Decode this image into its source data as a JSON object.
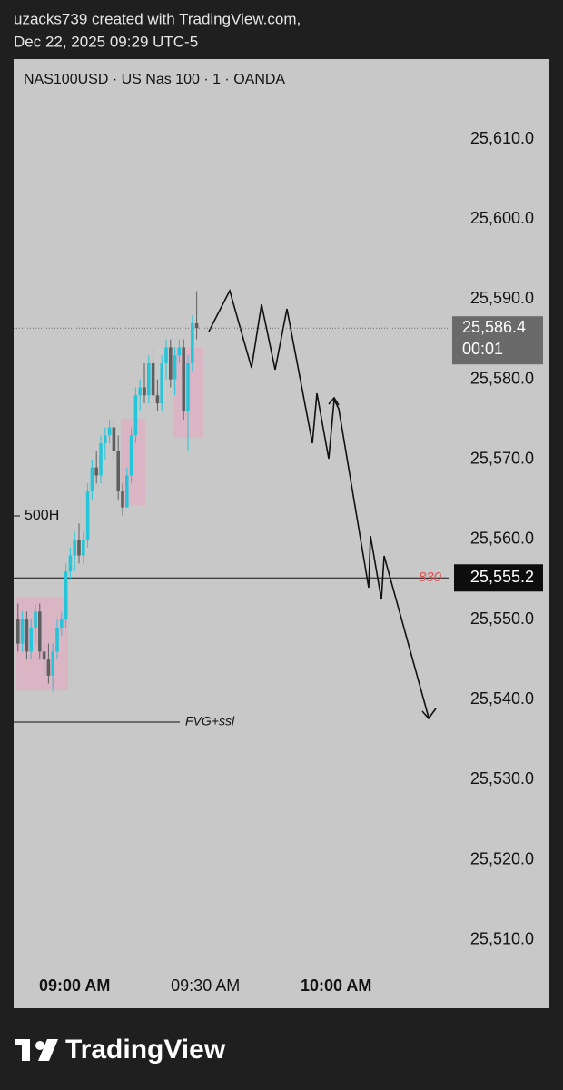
{
  "header": {
    "author_line": "uzacks739 created with TradingView.com,",
    "date_line": "Dec 22, 2025 09:29 UTC-5"
  },
  "chart_data": {
    "type": "candlestick",
    "title": "NAS100USD · US Nas 100 · 1 · OANDA",
    "x": [
      "08:47 AM",
      "08:48 AM",
      "08:49 AM",
      "08:50 AM",
      "08:51 AM",
      "08:52 AM",
      "08:53 AM",
      "08:54 AM",
      "08:55 AM",
      "08:56 AM",
      "08:57 AM",
      "08:58 AM",
      "08:59 AM",
      "09:00 AM",
      "09:01 AM",
      "09:02 AM",
      "09:03 AM",
      "09:04 AM",
      "09:05 AM",
      "09:06 AM",
      "09:07 AM",
      "09:08 AM",
      "09:09 AM",
      "09:10 AM",
      "09:11 AM",
      "09:12 AM",
      "09:13 AM",
      "09:14 AM",
      "09:15 AM",
      "09:16 AM",
      "09:17 AM",
      "09:18 AM",
      "09:19 AM",
      "09:20 AM",
      "09:21 AM",
      "09:22 AM",
      "09:23 AM",
      "09:24 AM",
      "09:25 AM",
      "09:26 AM",
      "09:27 AM",
      "09:28 AM"
    ],
    "open": [
      25550,
      25547,
      25550,
      25546,
      25549,
      25551,
      25546,
      25545,
      25543,
      25546,
      25549,
      25550,
      25556,
      25558,
      25560,
      25558,
      25560,
      25566,
      25569,
      25568,
      25572,
      25573,
      25574,
      25571,
      25566,
      25564,
      25568,
      25573,
      25578,
      25579,
      25578,
      25582,
      25578,
      25577,
      25582,
      25584,
      25580,
      25583,
      25584,
      25576,
      25582,
      25587
    ],
    "high": [
      25552,
      25551,
      25551,
      25550,
      25552,
      25552,
      25547,
      25547,
      25547,
      25550,
      25551,
      25557,
      25559,
      25561,
      25562,
      25561,
      25567,
      25570,
      25571,
      25573,
      25574,
      25575,
      25575,
      25573,
      25567,
      25569,
      25574,
      25579,
      25580,
      25582,
      25583,
      25584,
      25580,
      25583,
      25585,
      25585,
      25584,
      25585,
      25585,
      25583,
      25588,
      25591
    ],
    "low": [
      25546,
      25546,
      25545,
      25545,
      25547,
      25545,
      25543,
      25542,
      25541,
      25545,
      25548,
      25549,
      25555,
      25556,
      25557,
      25557,
      25559,
      25565,
      25567,
      25567,
      25570,
      25572,
      25570,
      25565,
      25563,
      25564,
      25567,
      25572,
      25576,
      25577,
      25577,
      25577,
      25576,
      25576,
      25580,
      25579,
      25578,
      25582,
      25575,
      25571,
      25581,
      25585
    ],
    "close": [
      25547,
      25550,
      25546,
      25549,
      25551,
      25546,
      25545,
      25543,
      25546,
      25549,
      25550,
      25556,
      25558,
      25560,
      25558,
      25560,
      25566,
      25569,
      25568,
      25572,
      25573,
      25574,
      25571,
      25566,
      25564,
      25568,
      25573,
      25578,
      25579,
      25578,
      25582,
      25578,
      25577,
      25582,
      25584,
      25580,
      25583,
      25584,
      25576,
      25582,
      25587,
      25586.4
    ],
    "up_color": "#26c6da",
    "down_color": "#5f5f5f",
    "xlim": [
      "08:46 AM",
      "10:26 AM"
    ],
    "xticks": [
      "09:00 AM",
      "09:30 AM",
      "10:00 AM"
    ],
    "ylim": [
      25506,
      25620
    ],
    "yticks": [
      {
        "value": 25510,
        "label": "25,510.0"
      },
      {
        "value": 25520,
        "label": "25,520.0"
      },
      {
        "value": 25530,
        "label": "25,530.0"
      },
      {
        "value": 25540,
        "label": "25,540.0"
      },
      {
        "value": 25550,
        "label": "25,550.0"
      },
      {
        "value": 25560,
        "label": "25,560.0"
      },
      {
        "value": 25570,
        "label": "25,570.0"
      },
      {
        "value": 25580,
        "label": "25,580.0"
      },
      {
        "value": 25590,
        "label": "25,590.0"
      },
      {
        "value": 25600,
        "label": "25,600.0"
      },
      {
        "value": 25610,
        "label": "25,610.0"
      }
    ],
    "price_line": {
      "value": 25555.2,
      "label": "25,555.2",
      "note": "830"
    },
    "last_price": {
      "value": 25586.4,
      "label": "25,586.4",
      "countdown": "00:01"
    },
    "annotations": [
      "500H",
      "FVG+ssl"
    ]
  },
  "footer": {
    "brand": "TradingView"
  }
}
